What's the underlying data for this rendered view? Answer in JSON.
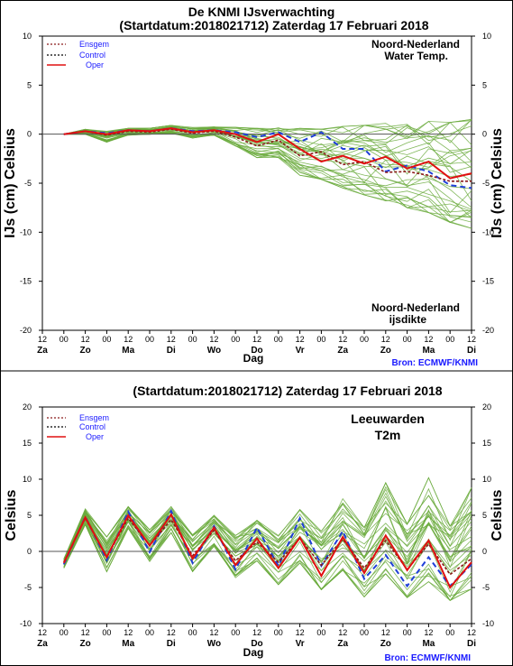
{
  "page": {
    "title": "De KNMI IJsverwachting",
    "day_labels": [
      "Za",
      "Zo",
      "Ma",
      "Di",
      "Wo",
      "Do",
      "Vr",
      "Za",
      "Zo",
      "Ma",
      "Di"
    ],
    "hour_labels": [
      "12",
      "00",
      "12",
      "00",
      "12",
      "00",
      "12",
      "00",
      "12",
      "00",
      "12",
      "00",
      "12",
      "00",
      "12",
      "00",
      "12",
      "00",
      "12",
      "00",
      "12"
    ],
    "x_axis_label": "Dag",
    "source": "Bron: ECMWF/KNMI"
  },
  "colors": {
    "ensemble": "#6aaa3c",
    "ensgem": "#8b1a1a",
    "control": "#1f3fd8",
    "oper": "#e01010",
    "zero_line": "#555555",
    "legend_ensgem_text": "#1a1aff",
    "legend_control_text": "#1a1aff",
    "legend_oper_text": "#1a1aff",
    "source_text": "#1a1aff"
  },
  "chart_data": [
    {
      "type": "line",
      "title": "(Startdatum:2018021712)  Zaterdag 17 Februari 2018",
      "ylabel_left": "IJs (cm)  Celsius",
      "ylabel_right": "IJs (cm)  Celsius",
      "ylim": [
        -20,
        10
      ],
      "yticks": [
        10,
        5,
        0,
        -5,
        -10,
        -15,
        -20
      ],
      "annotation_top": [
        "Noord-Nederland",
        "Water Temp."
      ],
      "annotation_bottom": [
        "Noord-Nederland",
        "ijsdikte"
      ],
      "legend": [
        "Ensgem",
        "Control",
        "Oper"
      ],
      "x": [
        1,
        2,
        3,
        4,
        5,
        6,
        7,
        8,
        9,
        10,
        11,
        12,
        13,
        14,
        15,
        16,
        17,
        18,
        19,
        20
      ],
      "series": [
        {
          "name": "Oper",
          "values": [
            0.0,
            0.3,
            0.0,
            0.4,
            0.3,
            0.6,
            0.2,
            0.4,
            0.0,
            -0.8,
            0.0,
            -1.5,
            -2.8,
            -2.2,
            -3.0,
            -2.3,
            -3.5,
            -2.8,
            -4.5,
            -4.0
          ]
        },
        {
          "name": "Control",
          "values": [
            0.0,
            0.3,
            0.1,
            0.4,
            0.3,
            0.6,
            0.3,
            0.4,
            0.2,
            -0.3,
            0.2,
            -0.8,
            0.2,
            -1.5,
            -1.5,
            -3.8,
            -3.2,
            -3.8,
            -5.2,
            -5.5
          ]
        },
        {
          "name": "Ensgem",
          "values": [
            0.0,
            0.3,
            -0.1,
            0.3,
            0.2,
            0.5,
            0.1,
            0.3,
            -0.3,
            -1.2,
            -0.6,
            -2.2,
            -1.8,
            -3.1,
            -2.8,
            -3.9,
            -3.8,
            -4.2,
            -4.8,
            -4.8
          ]
        }
      ],
      "ensemble_range": {
        "min": [
          0.0,
          0.0,
          -0.8,
          -0.1,
          0.0,
          0.1,
          -0.4,
          -0.1,
          -1.2,
          -2.4,
          -2.4,
          -4.2,
          -4.6,
          -5.5,
          -6.2,
          -6.8,
          -7.5,
          -8.0,
          -9.0,
          -9.6
        ],
        "max": [
          0.0,
          0.5,
          0.3,
          0.6,
          0.6,
          0.9,
          0.7,
          0.8,
          0.7,
          0.6,
          0.7,
          0.6,
          0.5,
          0.8,
          0.9,
          1.1,
          1.0,
          1.3,
          1.2,
          1.5
        ]
      }
    },
    {
      "type": "line",
      "title": "(Startdatum:2018021712)  Zaterdag 17 Februari 2018",
      "ylabel_left": "Celsius",
      "ylabel_right": "Celsius",
      "ylim": [
        -10,
        20
      ],
      "yticks": [
        20,
        15,
        10,
        5,
        0,
        -5,
        -10
      ],
      "annotation_top": [
        "Leeuwarden",
        "T2m"
      ],
      "legend": [
        "Ensgem",
        "Control",
        "Oper"
      ],
      "x": [
        1,
        2,
        3,
        4,
        5,
        6,
        7,
        8,
        9,
        10,
        11,
        12,
        13,
        14,
        15,
        16,
        17,
        18,
        19,
        20
      ],
      "series": [
        {
          "name": "Oper",
          "values": [
            -1.6,
            4.7,
            -0.8,
            5.0,
            0.8,
            5.1,
            -1.0,
            3.3,
            -1.9,
            1.8,
            -2.3,
            1.9,
            -3.4,
            2.0,
            -3.0,
            2.2,
            -2.6,
            1.5,
            -5.0,
            -1.5
          ]
        },
        {
          "name": "Control",
          "values": [
            -1.8,
            4.8,
            -1.2,
            5.5,
            -0.1,
            5.6,
            -1.6,
            3.5,
            -2.5,
            3.3,
            -2.0,
            4.6,
            -2.0,
            2.8,
            -3.8,
            -0.5,
            -4.8,
            -0.8,
            -4.8,
            -1.8
          ]
        },
        {
          "name": "Ensgem",
          "values": [
            -1.5,
            4.6,
            -0.8,
            4.6,
            0.8,
            4.4,
            -0.6,
            2.9,
            -1.3,
            1.3,
            -1.5,
            1.8,
            -1.9,
            1.7,
            -2.3,
            1.5,
            -2.5,
            1.0,
            -3.2,
            -1.0
          ]
        }
      ],
      "ensemble_range": {
        "min": [
          -2.3,
          3.6,
          -3.1,
          3.2,
          -1.4,
          2.6,
          -2.8,
          0.7,
          -3.7,
          -1.3,
          -4.6,
          -1.6,
          -5.3,
          -2.6,
          -6.3,
          -3.1,
          -6.4,
          -4.2,
          -6.8,
          -5.2
        ],
        "max": [
          -1.0,
          5.9,
          2.0,
          6.2,
          3.0,
          6.2,
          2.3,
          5.0,
          2.2,
          4.3,
          2.2,
          5.8,
          2.8,
          7.3,
          3.3,
          9.5,
          3.8,
          10.2,
          3.5,
          8.8
        ]
      }
    }
  ]
}
